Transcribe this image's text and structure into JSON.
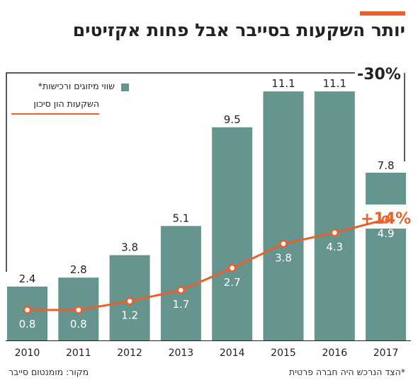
{
  "title": "יותר השקעות בסייבר אבל פחות אקזיטים",
  "legend": {
    "bars_label": "שווי מיזוגים ורכישות*",
    "line_label": "השקעות הון סיכון"
  },
  "source": "מקור: מומנטום סייבר",
  "footnote": "*הצד הנרכש היה חברה פרטית",
  "colors": {
    "bar": "#66948f",
    "line": "#e8612c",
    "accent": "#e8612c",
    "text": "#222222"
  },
  "chart_data": {
    "type": "bar",
    "categories": [
      "2010",
      "2011",
      "2012",
      "2013",
      "2014",
      "2015",
      "2016",
      "2017"
    ],
    "series": [
      {
        "name": "שווי מיזוגים ורכישות*",
        "type": "bar",
        "values": [
          2.4,
          2.8,
          3.8,
          5.1,
          9.5,
          11.1,
          11.1,
          7.8
        ]
      },
      {
        "name": "השקעות הון סיכון",
        "type": "line",
        "values": [
          0.8,
          0.8,
          1.2,
          1.7,
          2.7,
          3.8,
          4.3,
          4.9
        ]
      }
    ],
    "annotations": [
      {
        "text": "-30%",
        "series": "שווי מיזוגים ורכישות*",
        "from": "2010",
        "to": "2017"
      },
      {
        "text": "+14%",
        "series": "השקעות הון סיכון",
        "at": "2017"
      }
    ],
    "ylim": [
      0,
      12
    ],
    "grid": false,
    "legend_position": "top-left"
  }
}
